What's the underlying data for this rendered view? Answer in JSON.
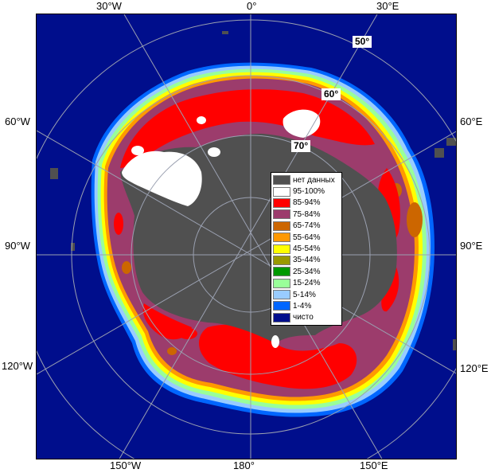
{
  "map": {
    "longitude_labels": {
      "top": [
        "30°W",
        "0°",
        "30°E"
      ],
      "left": [
        "60°W",
        "90°W",
        "120°W"
      ],
      "right": [
        "60°E",
        "90°E",
        "120°E"
      ],
      "bottom": [
        "150°W",
        "180°",
        "150°E"
      ]
    },
    "latitude_labels": [
      "50°",
      "60°",
      "70°"
    ],
    "colors": {
      "ocean": "#000e8c",
      "no_data": "#505050",
      "graticule": "#9aa0b0"
    }
  },
  "legend": {
    "items": [
      {
        "label": "нет данных",
        "color": "#505050"
      },
      {
        "label": "95-100%",
        "color": "#ffffff"
      },
      {
        "label": "85-94%",
        "color": "#ff0000"
      },
      {
        "label": "75-84%",
        "color": "#9c3c6c"
      },
      {
        "label": "65-74%",
        "color": "#cc6600"
      },
      {
        "label": "55-64%",
        "color": "#ff9900"
      },
      {
        "label": "45-54%",
        "color": "#ffff00"
      },
      {
        "label": "35-44%",
        "color": "#999900"
      },
      {
        "label": "25-34%",
        "color": "#009900"
      },
      {
        "label": "15-24%",
        "color": "#99ff99"
      },
      {
        "label": "5-14%",
        "color": "#99ccff"
      },
      {
        "label": "1-4%",
        "color": "#0066ff"
      },
      {
        "label": "чисто",
        "color": "#000e8c"
      }
    ]
  }
}
